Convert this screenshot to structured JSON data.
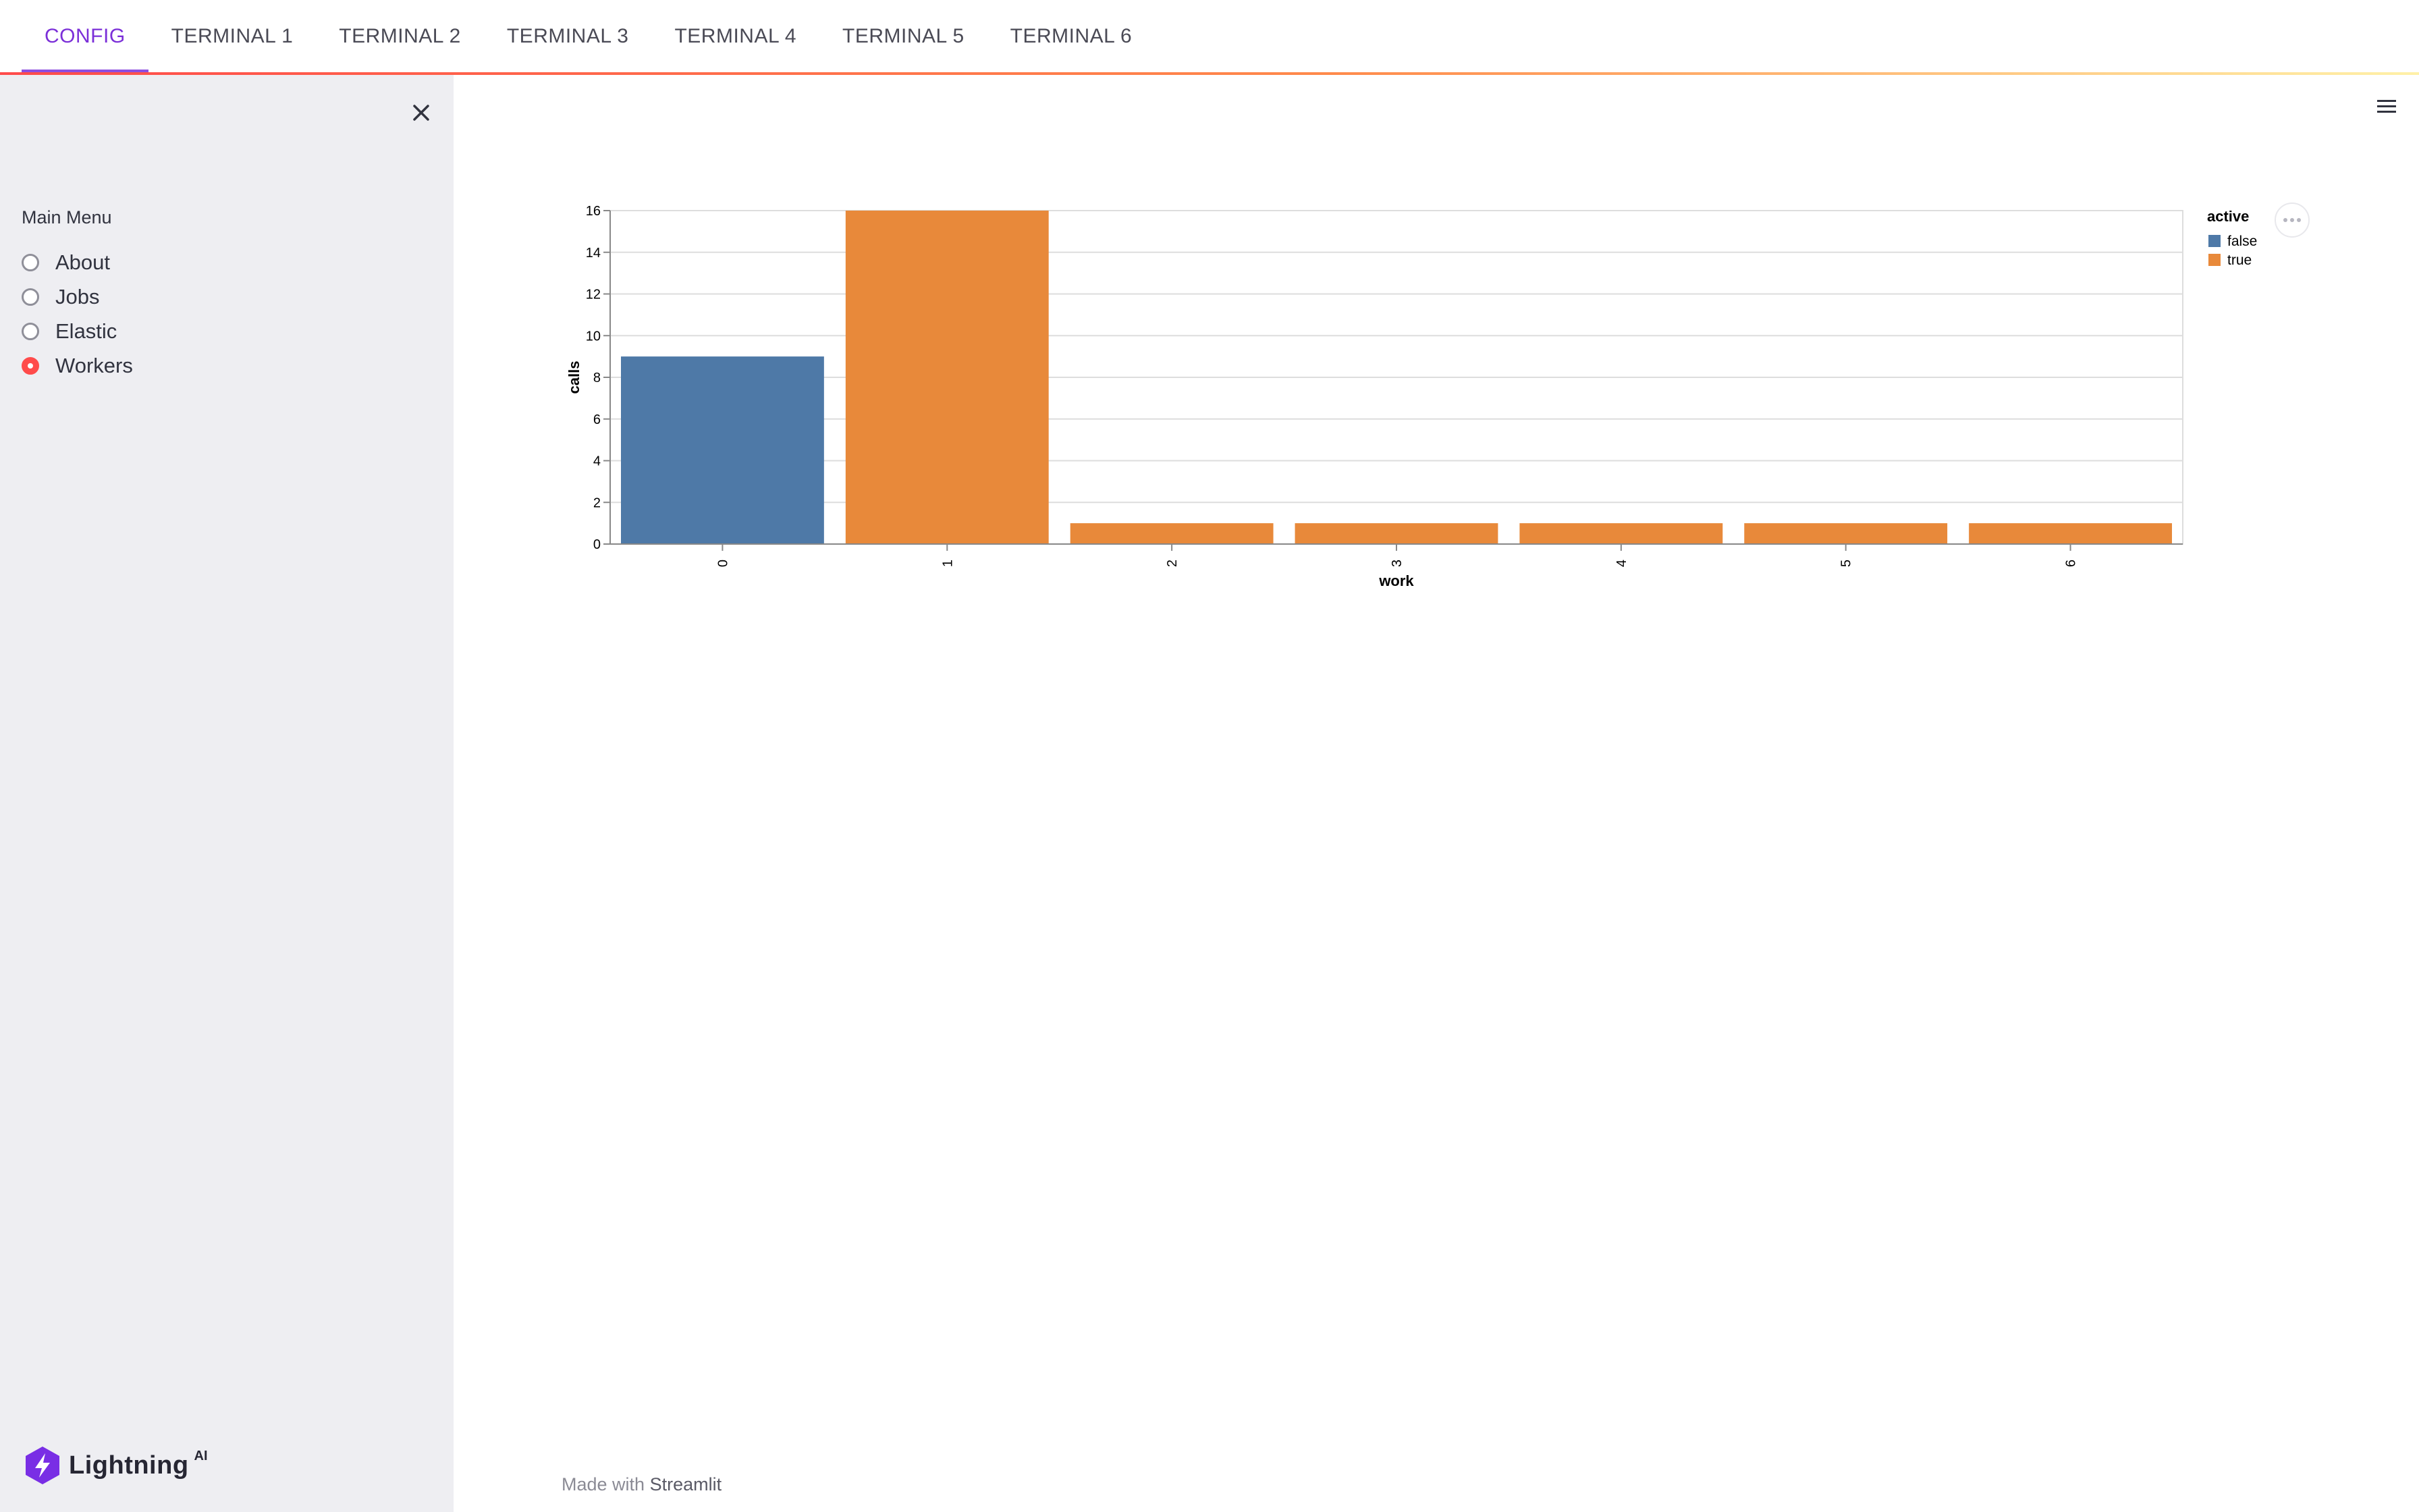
{
  "tabs": [
    {
      "label": "CONFIG",
      "active": true
    },
    {
      "label": "TERMINAL 1",
      "active": false
    },
    {
      "label": "TERMINAL 2",
      "active": false
    },
    {
      "label": "TERMINAL 3",
      "active": false
    },
    {
      "label": "TERMINAL 4",
      "active": false
    },
    {
      "label": "TERMINAL 5",
      "active": false
    },
    {
      "label": "TERMINAL 6",
      "active": false
    }
  ],
  "sidebar": {
    "menu_title": "Main Menu",
    "options": [
      {
        "label": "About",
        "selected": false
      },
      {
        "label": "Jobs",
        "selected": false
      },
      {
        "label": "Elastic",
        "selected": false
      },
      {
        "label": "Workers",
        "selected": true
      }
    ],
    "brand": {
      "name": "Lightning",
      "sup": "AI"
    }
  },
  "icons": {
    "close": "close-icon",
    "menu": "hamburger-menu-icon",
    "more": "more-actions-icon",
    "logo": "lightning-logo-icon"
  },
  "colors": {
    "accent_tab": "#7b2fd8",
    "radio_selected": "#ff4b4b",
    "series_false": "#4e79a7",
    "series_true": "#e8893a"
  },
  "chart_data": {
    "type": "bar",
    "title": "",
    "xlabel": "work",
    "ylabel": "calls",
    "categories": [
      "0",
      "1",
      "2",
      "3",
      "4",
      "5",
      "6"
    ],
    "values": [
      9,
      16,
      1,
      1,
      1,
      1,
      1
    ],
    "active": [
      "false",
      "true",
      "true",
      "true",
      "true",
      "true",
      "true"
    ],
    "ylim": [
      0,
      16
    ],
    "yticks": [
      0,
      2,
      4,
      6,
      8,
      10,
      12,
      14,
      16
    ],
    "grid": true,
    "legend": {
      "title": "active",
      "placement": "right",
      "entries": [
        {
          "label": "false",
          "color": "#4e79a7"
        },
        {
          "label": "true",
          "color": "#e8893a"
        }
      ]
    }
  },
  "footer": {
    "prefix": "Made with",
    "brand": "Streamlit"
  }
}
